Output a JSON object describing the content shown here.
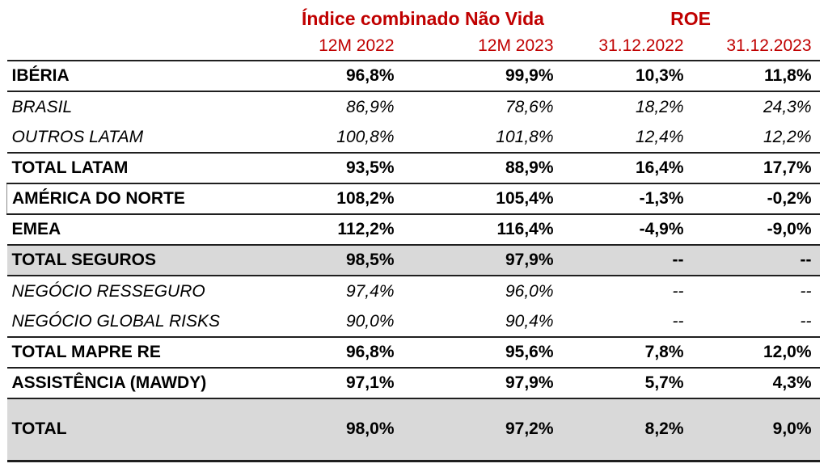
{
  "table": {
    "column_groups": [
      {
        "label": "Índice combinado Não Vida",
        "span": 2
      },
      {
        "label": "ROE",
        "span": 2
      }
    ],
    "column_headers": [
      "12M 2022",
      "12M 2023",
      "31.12.2022",
      "31.12.2023"
    ],
    "rows": [
      {
        "label": "IBÉRIA",
        "emphasis": "bold",
        "shaded": false,
        "values": [
          "96,8%",
          "99,9%",
          "10,3%",
          "11,8%"
        ]
      },
      {
        "label": "BRASIL",
        "emphasis": "italic",
        "shaded": false,
        "values": [
          "86,9%",
          "78,6%",
          "18,2%",
          "24,3%"
        ]
      },
      {
        "label": "OUTROS LATAM",
        "emphasis": "italic",
        "shaded": false,
        "values": [
          "100,8%",
          "101,8%",
          "12,4%",
          "12,2%"
        ]
      },
      {
        "label": "TOTAL LATAM",
        "emphasis": "bold",
        "shaded": false,
        "values": [
          "93,5%",
          "88,9%",
          "16,4%",
          "17,7%"
        ]
      },
      {
        "label": "AMÉRICA DO NORTE",
        "emphasis": "bold",
        "shaded": false,
        "values": [
          "108,2%",
          "105,4%",
          "-1,3%",
          "-0,2%"
        ]
      },
      {
        "label": "EMEA",
        "emphasis": "bold",
        "shaded": false,
        "values": [
          "112,2%",
          "116,4%",
          "-4,9%",
          "-9,0%"
        ]
      },
      {
        "label": "TOTAL SEGUROS",
        "emphasis": "bold",
        "shaded": true,
        "values": [
          "98,5%",
          "97,9%",
          "--",
          "--"
        ]
      },
      {
        "label": "NEGÓCIO RESSEGURO",
        "emphasis": "italic",
        "shaded": false,
        "values": [
          "97,4%",
          "96,0%",
          "--",
          "--"
        ]
      },
      {
        "label": "NEGÓCIO GLOBAL RISKS",
        "emphasis": "italic",
        "shaded": false,
        "values": [
          "90,0%",
          "90,4%",
          "--",
          "--"
        ]
      },
      {
        "label": "TOTAL MAPRE RE",
        "emphasis": "bold",
        "shaded": false,
        "values": [
          "96,8%",
          "95,6%",
          "7,8%",
          "12,0%"
        ]
      },
      {
        "label": "ASSISTÊNCIA (MAWDY)",
        "emphasis": "bold",
        "shaded": false,
        "values": [
          "97,1%",
          "97,9%",
          "5,7%",
          "4,3%"
        ]
      },
      {
        "label": "TOTAL",
        "emphasis": "bold",
        "shaded": true,
        "values": [
          "98,0%",
          "97,2%",
          "8,2%",
          "9,0%"
        ]
      }
    ],
    "colors": {
      "header_text": "#C00000",
      "shaded_row_background": "#D9D9D9",
      "rule_line": "#1F1F1F",
      "body_text": "#000000",
      "page_background": "#FFFFFF"
    }
  }
}
